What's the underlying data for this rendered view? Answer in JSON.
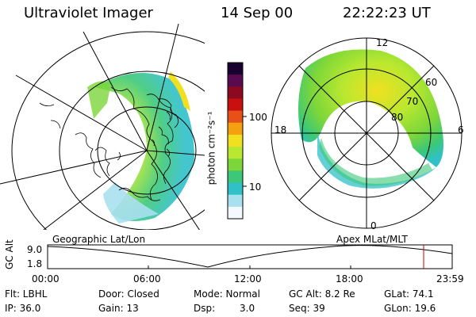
{
  "header": {
    "title": "Ultraviolet Imager",
    "date": "14 Sep 00",
    "time": "22:22:23 UT"
  },
  "colorbar": {
    "unit_label": "photon cm⁻²s⁻¹",
    "tick_100": "100",
    "tick_10": "10",
    "colors": [
      "#1a0030",
      "#5a0a50",
      "#8c0a20",
      "#c81010",
      "#e8501a",
      "#f5a010",
      "#f0e020",
      "#b8e830",
      "#7cd63a",
      "#3cc878",
      "#30c0c8",
      "#a8e0f0",
      "#f4f8ff"
    ]
  },
  "left_panel": {
    "label": "Geographic Lat/Lon"
  },
  "right_panel": {
    "label": "Apex MLat/MLT",
    "mlt_12": "12",
    "mlt_6": "6",
    "mlt_18": "18",
    "mlt_0": "0",
    "mlat_60": "60",
    "mlat_70": "70",
    "mlat_80": "80"
  },
  "altitude_plot": {
    "ylabel": "GC Alt",
    "ytick_top": "9.0",
    "ytick_bottom": "1.8",
    "xticks": [
      "00:00",
      "06:00",
      "12:00",
      "18:00",
      "23:59"
    ],
    "marker_color": "#cc0000"
  },
  "info": {
    "flt": "Flt: LBHL",
    "ip": "IP: 36.0",
    "door": "Door: Closed",
    "gain": "Gain: 13",
    "mode": "Mode: Normal",
    "dsp_label": "Dsp:",
    "dsp_value": "3.0",
    "gc_alt": "GC Alt: 8.2 Re",
    "seq": "Seq: 39",
    "glat": "GLat: 74.1",
    "glon": "GLon: 19.6"
  }
}
